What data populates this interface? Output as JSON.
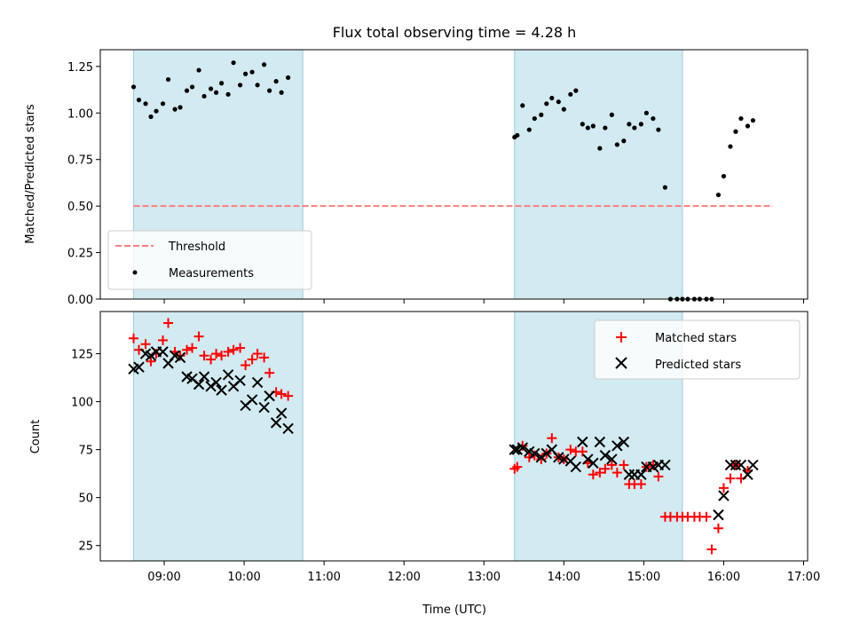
{
  "chart_data": [
    {
      "type": "scatter",
      "title": "Flux total observing time = 4.28 h",
      "xlabel": "",
      "ylabel": "Matched/Predicted stars",
      "xlim": [
        "08:12",
        "17:03"
      ],
      "ylim": [
        0,
        1.34
      ],
      "yticks": [
        0.0,
        0.25,
        0.5,
        0.75,
        1.0,
        1.25
      ],
      "ytick_labels": [
        "0.00",
        "0.25",
        "0.50",
        "0.75",
        "1.00",
        "1.25"
      ],
      "legend_position": "lower-left",
      "shaded_spans": [
        [
          "08:37",
          "10:44"
        ],
        [
          "13:23",
          "15:29"
        ]
      ],
      "threshold": {
        "name": "Threshold",
        "value": 0.5,
        "x_range": [
          "08:37",
          "16:37"
        ],
        "color": "#ff7f7f"
      },
      "series": [
        {
          "name": "Measurements",
          "marker": "dot",
          "color": "#000000",
          "x": [
            "08:37",
            "08:41",
            "08:46",
            "08:50",
            "08:54",
            "08:59",
            "09:03",
            "09:08",
            "09:12",
            "09:17",
            "09:21",
            "09:26",
            "09:30",
            "09:35",
            "09:39",
            "09:43",
            "09:48",
            "09:52",
            "09:57",
            "10:01",
            "10:06",
            "10:10",
            "10:15",
            "10:19",
            "10:24",
            "10:28",
            "10:33",
            "10:37",
            "10:42",
            "13:23",
            "13:25",
            "13:29",
            "13:34",
            "13:38",
            "13:43",
            "13:47",
            "13:51",
            "13:56",
            "14:00",
            "14:05",
            "14:09",
            "14:14",
            "14:18",
            "14:22",
            "14:27",
            "14:31",
            "14:36",
            "14:40",
            "14:45",
            "14:49",
            "14:53",
            "14:58",
            "15:02",
            "15:07",
            "15:11",
            "15:16",
            "15:20",
            "15:25",
            "15:29",
            "15:33",
            "15:38",
            "15:42",
            "15:47",
            "15:51",
            "15:56",
            "16:00",
            "16:05",
            "16:09",
            "16:13",
            "16:18",
            "16:22",
            "16:27",
            "16:31",
            "16:36",
            "16:40"
          ],
          "y": [
            1.14,
            1.07,
            1.05,
            0.98,
            1.01,
            1.05,
            1.18,
            1.02,
            1.03,
            1.12,
            1.14,
            1.23,
            1.09,
            1.13,
            1.11,
            1.16,
            1.1,
            1.27,
            1.15,
            1.21,
            1.22,
            1.15,
            1.26,
            1.12,
            1.17,
            1.11,
            1.19,
            null,
            null,
            0.87,
            0.88,
            1.04,
            0.91,
            0.97,
            0.99,
            1.05,
            1.08,
            1.06,
            1.02,
            1.1,
            1.12,
            0.94,
            0.92,
            0.93,
            0.81,
            0.92,
            0.99,
            0.83,
            0.85,
            0.94,
            0.92,
            0.94,
            1.0,
            0.97,
            0.91,
            0.6,
            0,
            0,
            0,
            0,
            0,
            0,
            0,
            0,
            0.56,
            0.66,
            0.82,
            0.9,
            0.97,
            0.93,
            0.96,
            null,
            null,
            null,
            null
          ]
        }
      ]
    },
    {
      "type": "scatter",
      "title": "",
      "xlabel": "Time (UTC)",
      "ylabel": "Count",
      "xlim": [
        "08:12",
        "17:03"
      ],
      "ylim": [
        17,
        147
      ],
      "xtick_labels": [
        "09:00",
        "10:00",
        "11:00",
        "12:00",
        "13:00",
        "14:00",
        "15:00",
        "16:00",
        "17:00"
      ],
      "yticks": [
        25,
        50,
        75,
        100,
        125
      ],
      "ytick_labels": [
        "25",
        "50",
        "75",
        "100",
        "125"
      ],
      "legend_position": "upper-right",
      "shaded_spans": [
        [
          "08:37",
          "10:44"
        ],
        [
          "13:23",
          "15:29"
        ]
      ],
      "series": [
        {
          "name": "Matched stars",
          "marker": "plus",
          "color": "#ff0000",
          "x": [
            "08:37",
            "08:41",
            "08:46",
            "08:50",
            "08:54",
            "08:59",
            "09:03",
            "09:08",
            "09:12",
            "09:17",
            "09:21",
            "09:26",
            "09:30",
            "09:35",
            "09:39",
            "09:43",
            "09:48",
            "09:52",
            "09:57",
            "10:01",
            "10:06",
            "10:10",
            "10:15",
            "10:19",
            "10:24",
            "10:28",
            "10:33",
            "10:37",
            "10:42",
            "13:23",
            "13:25",
            "13:29",
            "13:34",
            "13:38",
            "13:43",
            "13:47",
            "13:51",
            "13:56",
            "14:00",
            "14:05",
            "14:09",
            "14:14",
            "14:18",
            "14:22",
            "14:27",
            "14:31",
            "14:36",
            "14:40",
            "14:45",
            "14:49",
            "14:53",
            "14:58",
            "15:02",
            "15:07",
            "15:11",
            "15:16",
            "15:20",
            "15:25",
            "15:29",
            "15:33",
            "15:38",
            "15:42",
            "15:47",
            "15:51",
            "15:56",
            "16:00",
            "16:05",
            "16:09",
            "16:13",
            "16:18",
            "16:22",
            "16:27",
            "16:31",
            "16:36",
            "16:40"
          ],
          "y": [
            133,
            127,
            130,
            121,
            125,
            132,
            141,
            126,
            124,
            127,
            128,
            134,
            124,
            122,
            125,
            124,
            126,
            127,
            128,
            119,
            122,
            125,
            123,
            115,
            105,
            104,
            103,
            null,
            null,
            65,
            66,
            77,
            71,
            72,
            70,
            73,
            81,
            71,
            70,
            75,
            74,
            74,
            68,
            62,
            63,
            65,
            67,
            63,
            67,
            57,
            57,
            57,
            66,
            67,
            61,
            40,
            40,
            40,
            40,
            40,
            40,
            40,
            40,
            23,
            34,
            55,
            60,
            67,
            60,
            64,
            null,
            null,
            null,
            null,
            null
          ]
        },
        {
          "name": "Predicted stars",
          "marker": "x",
          "color": "#000000",
          "x": [
            "08:37",
            "08:41",
            "08:46",
            "08:50",
            "08:54",
            "08:59",
            "09:03",
            "09:08",
            "09:12",
            "09:17",
            "09:21",
            "09:26",
            "09:30",
            "09:35",
            "09:39",
            "09:43",
            "09:48",
            "09:52",
            "09:57",
            "10:01",
            "10:06",
            "10:10",
            "10:15",
            "10:19",
            "10:24",
            "10:28",
            "10:33",
            "10:37",
            "10:42",
            "13:23",
            "13:25",
            "13:29",
            "13:34",
            "13:38",
            "13:43",
            "13:47",
            "13:51",
            "13:56",
            "14:00",
            "14:05",
            "14:09",
            "14:14",
            "14:18",
            "14:22",
            "14:27",
            "14:31",
            "14:36",
            "14:40",
            "14:45",
            "14:49",
            "14:53",
            "14:58",
            "15:02",
            "15:07",
            "15:11",
            "15:16",
            "15:20",
            "15:25",
            "15:29",
            "15:33",
            "15:38",
            "15:42",
            "15:47",
            "15:51",
            "15:56",
            "16:00",
            "16:05",
            "16:09",
            "16:13",
            "16:18",
            "16:22",
            "16:27",
            "16:31",
            "16:36",
            "16:40"
          ],
          "y": [
            117,
            118,
            125,
            124,
            126,
            126,
            120,
            124,
            123,
            113,
            112,
            109,
            113,
            108,
            110,
            106,
            114,
            108,
            111,
            98,
            101,
            110,
            97,
            103,
            89,
            94,
            86,
            null,
            null,
            75,
            75,
            76,
            74,
            73,
            71,
            73,
            75,
            71,
            70,
            69,
            66,
            79,
            70,
            68,
            79,
            72,
            70,
            77,
            79,
            62,
            62,
            62,
            66,
            66,
            67,
            67,
            null,
            null,
            null,
            null,
            null,
            null,
            null,
            null,
            41,
            51,
            67,
            67,
            67,
            62,
            67,
            null,
            null,
            null,
            null
          ]
        }
      ]
    }
  ],
  "colors": {
    "shade": "#add8e6",
    "threshold": "#ff7f7f",
    "matched": "#ff0000",
    "predicted": "#000000",
    "measurements": "#000000"
  }
}
